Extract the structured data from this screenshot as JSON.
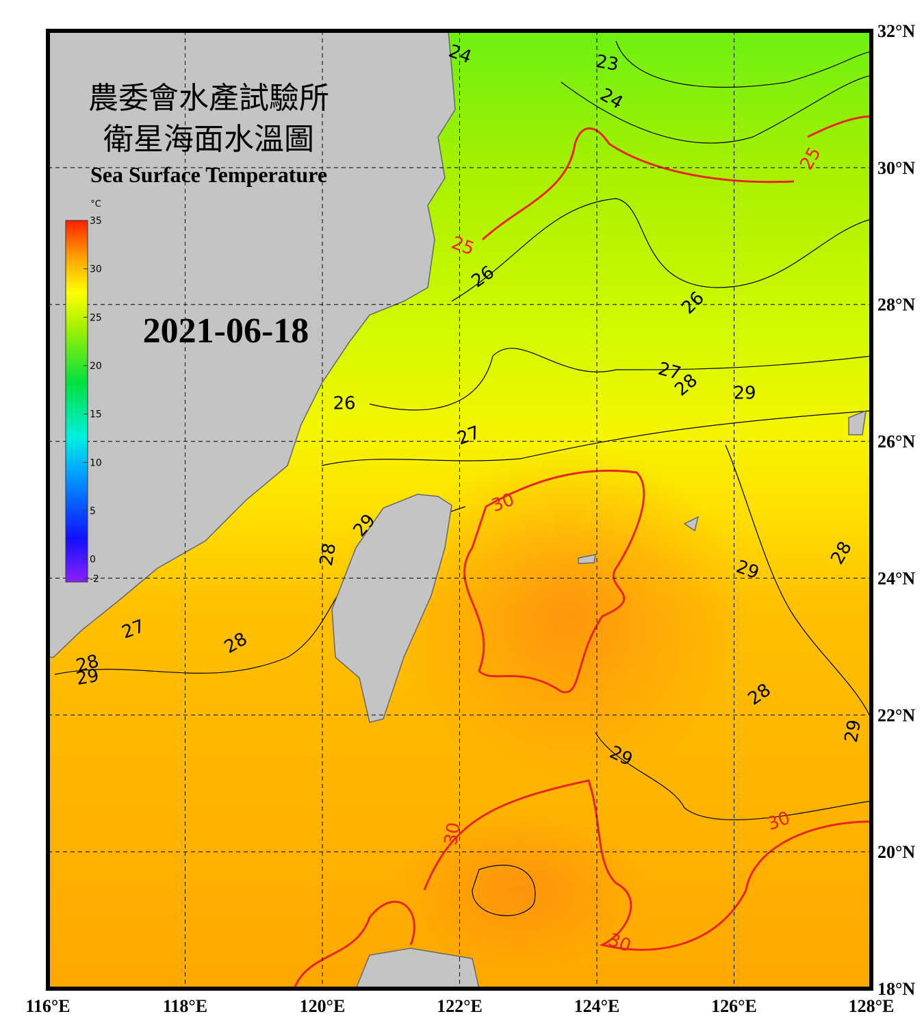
{
  "title_zh_1": "農委會水產試驗所",
  "title_zh_2": "衛星海面水溫圖",
  "title_en": "Sea Surface Temperature",
  "date": "2021-06-18",
  "colorbar": {
    "unit": "°C",
    "lim": [
      -2,
      35
    ],
    "ticks": [
      35,
      30,
      25,
      20,
      15,
      10,
      5,
      0,
      -2
    ]
  },
  "xlim": [
    116,
    128
  ],
  "ylim": [
    18,
    32
  ],
  "xticks": [
    {
      "value": 116,
      "label": "116°E"
    },
    {
      "value": 118,
      "label": "118°E"
    },
    {
      "value": 120,
      "label": "120°E"
    },
    {
      "value": 122,
      "label": "122°E"
    },
    {
      "value": 124,
      "label": "124°E"
    },
    {
      "value": 126,
      "label": "126°E"
    },
    {
      "value": 128,
      "label": "128°E"
    }
  ],
  "yticks": [
    {
      "value": 18,
      "label": "18°N"
    },
    {
      "value": 20,
      "label": "20°N"
    },
    {
      "value": 22,
      "label": "22°N"
    },
    {
      "value": 24,
      "label": "24°N"
    },
    {
      "value": 26,
      "label": "26°N"
    },
    {
      "value": 28,
      "label": "28°N"
    },
    {
      "value": 30,
      "label": "30°N"
    },
    {
      "value": 32,
      "label": "32°N"
    }
  ],
  "contour_labels": [
    {
      "value": 24,
      "color": "#000000"
    },
    {
      "value": 23,
      "color": "#000000"
    },
    {
      "value": 24,
      "color": "#000000"
    },
    {
      "value": 25,
      "color": "#e8261f"
    },
    {
      "value": 25,
      "color": "#e8261f"
    },
    {
      "value": 26,
      "color": "#000000"
    },
    {
      "value": 26,
      "color": "#000000"
    },
    {
      "value": 26,
      "color": "#000000"
    },
    {
      "value": 27,
      "color": "#000000"
    },
    {
      "value": 28,
      "color": "#000000"
    },
    {
      "value": 29,
      "color": "#000000"
    },
    {
      "value": 27,
      "color": "#000000"
    },
    {
      "value": 30,
      "color": "#e8261f"
    },
    {
      "value": 29,
      "color": "#000000"
    },
    {
      "value": 28,
      "color": "#000000"
    },
    {
      "value": 28,
      "color": "#000000"
    },
    {
      "value": 29,
      "color": "#000000"
    },
    {
      "value": 27,
      "color": "#000000"
    },
    {
      "value": 28,
      "color": "#000000"
    },
    {
      "value": 28,
      "color": "#000000"
    },
    {
      "value": 29,
      "color": "#000000"
    },
    {
      "value": 28,
      "color": "#000000"
    },
    {
      "value": 29,
      "color": "#000000"
    },
    {
      "value": 29,
      "color": "#000000"
    },
    {
      "value": 30,
      "color": "#e8261f"
    },
    {
      "value": 30,
      "color": "#e8261f"
    },
    {
      "value": 30,
      "color": "#e8261f"
    }
  ]
}
